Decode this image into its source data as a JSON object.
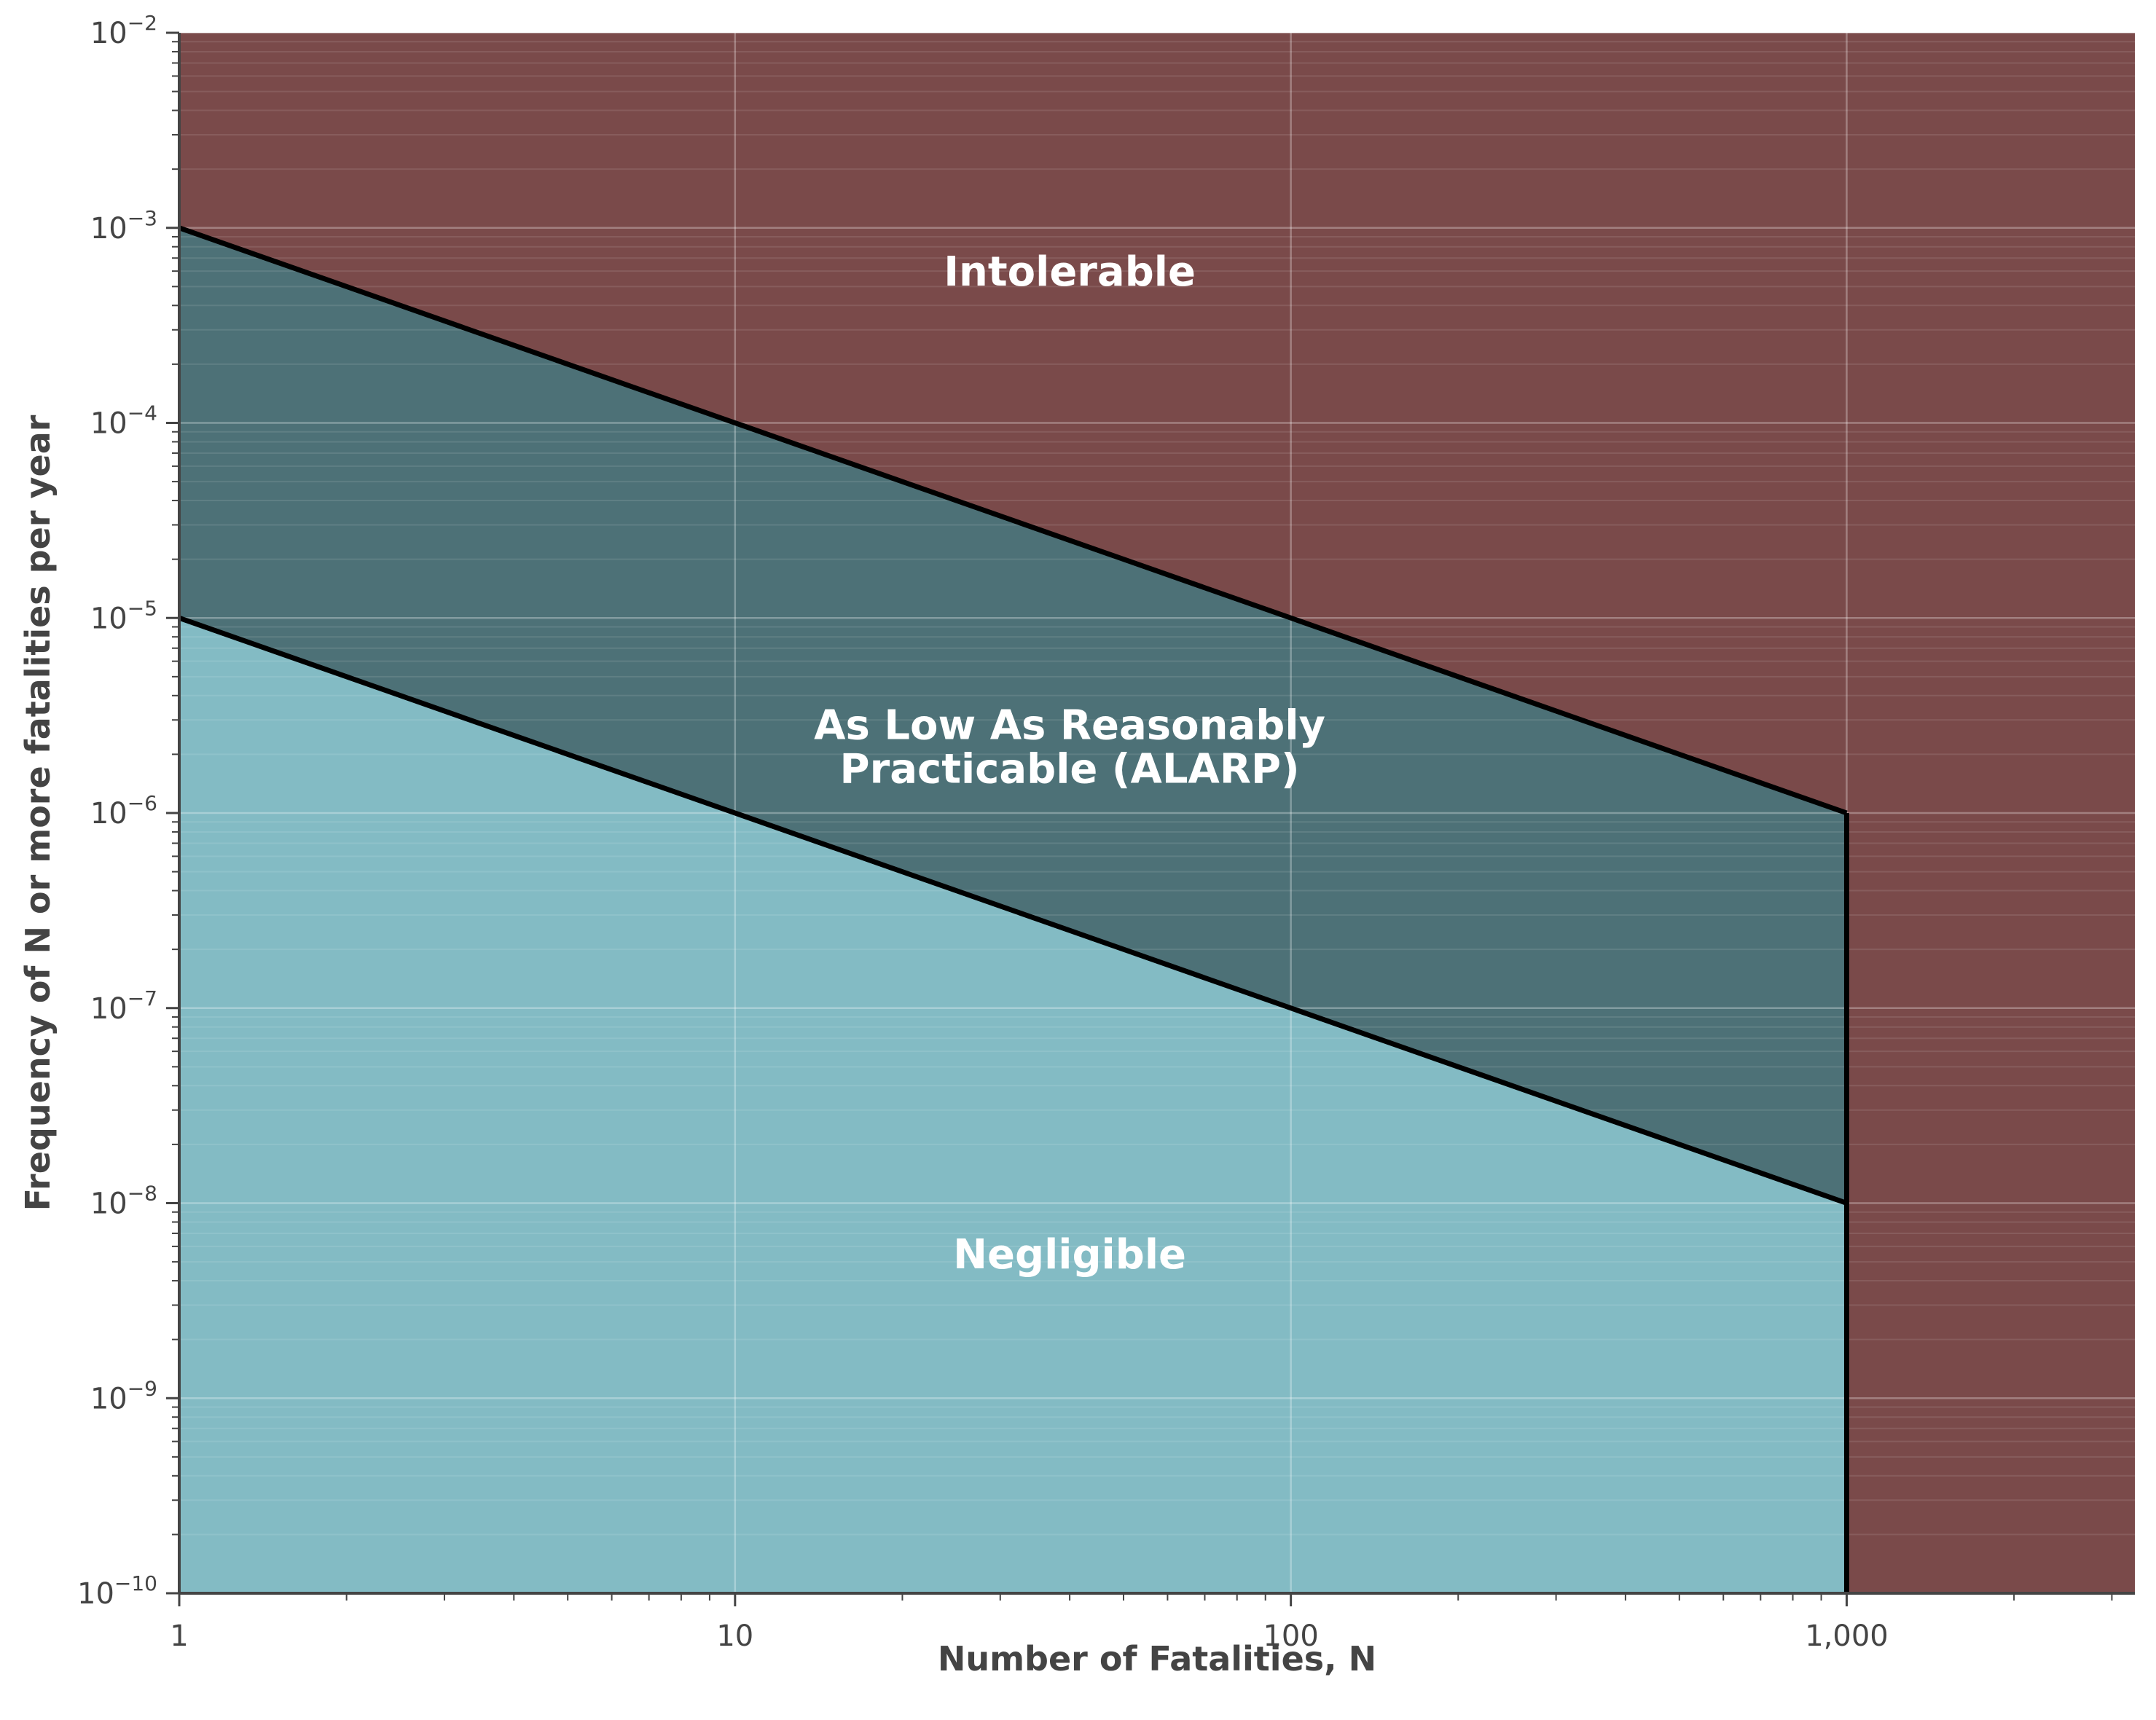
{
  "chart_data": {
    "type": "area",
    "title": "",
    "xlabel": "Number of Fatalities, N",
    "ylabel": "Frequency of N or more fatalities per year",
    "x_scale": "log",
    "y_scale": "log",
    "xlim": [
      1,
      3300
    ],
    "ylim": [
      1e-10,
      0.01
    ],
    "grid": true,
    "x_ticks": [
      {
        "value": 1,
        "label": "1"
      },
      {
        "value": 10,
        "label": "10"
      },
      {
        "value": 100,
        "label": "100"
      },
      {
        "value": 1000,
        "label": "1,000"
      }
    ],
    "y_ticks": [
      {
        "value": 1e-10,
        "base": "10",
        "exp": "−10"
      },
      {
        "value": 1e-09,
        "base": "10",
        "exp": "−9"
      },
      {
        "value": 1e-08,
        "base": "10",
        "exp": "−8"
      },
      {
        "value": 1e-07,
        "base": "10",
        "exp": "−7"
      },
      {
        "value": 1e-06,
        "base": "10",
        "exp": "−6"
      },
      {
        "value": 1e-05,
        "base": "10",
        "exp": "−5"
      },
      {
        "value": 0.0001,
        "base": "10",
        "exp": "−4"
      },
      {
        "value": 0.001,
        "base": "10",
        "exp": "−3"
      },
      {
        "value": 0.01,
        "base": "10",
        "exp": "−2"
      }
    ],
    "series": [
      {
        "x": [
          1,
          10,
          100,
          1000
        ],
        "y": [
          0.001,
          0.0001,
          1e-05,
          1e-06
        ]
      },
      {
        "x": [
          1,
          10,
          100,
          1000
        ],
        "y": [
          1e-05,
          1e-06,
          1e-07,
          1e-08
        ]
      }
    ],
    "cutoff_x": 1000,
    "regions": [
      {
        "label": "Intolerable",
        "color": "#7a4a4a",
        "label_x": 40,
        "label_y": 0.0006
      },
      {
        "label_lines": [
          "As Low As Reasonably",
          "Practicable (ALARP)"
        ],
        "color": "#4d7177",
        "label_x": 40,
        "label_y": 2.2e-06
      },
      {
        "label": "Negligible",
        "color": "#83bbc4",
        "label_x": 40,
        "label_y": 5.5e-09
      }
    ],
    "line_color": "#000000"
  }
}
